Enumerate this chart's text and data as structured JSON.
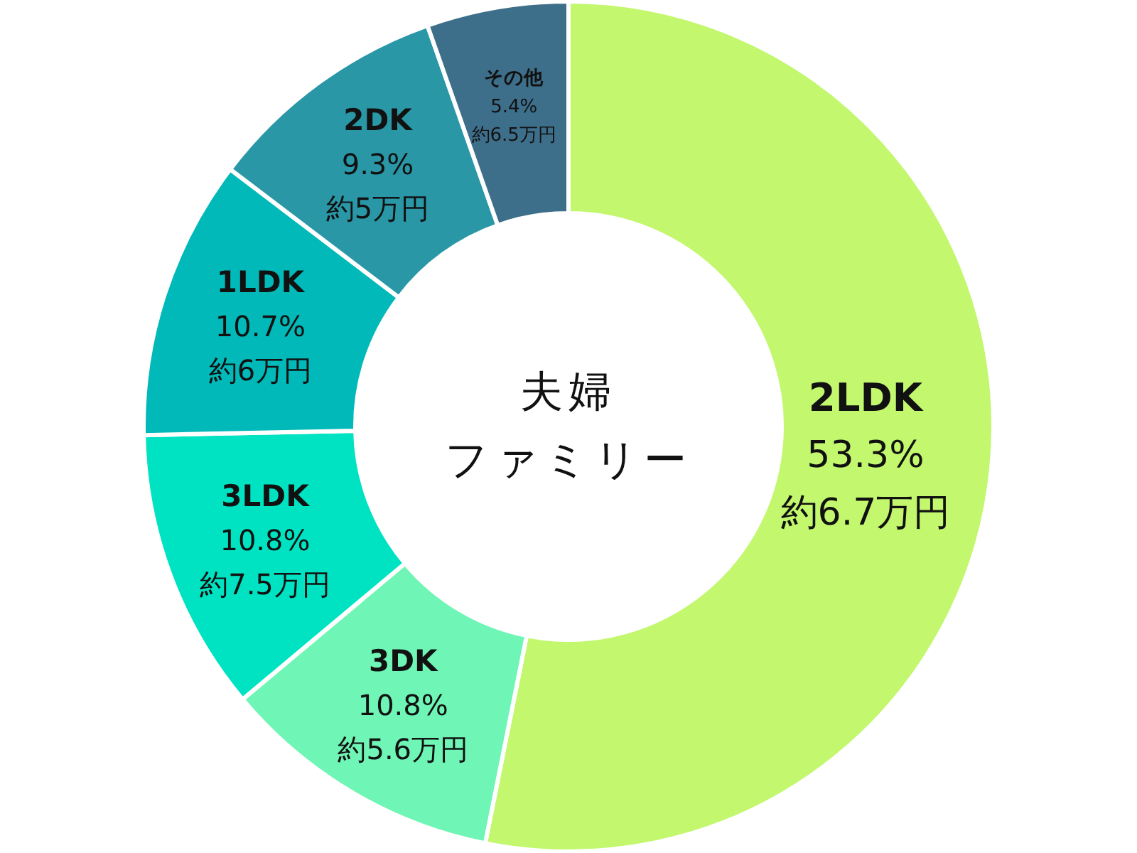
{
  "chart_data": {
    "type": "donut",
    "title": "夫婦",
    "subtitle": "ファミリー",
    "categories": [
      "2LDK",
      "3DK",
      "3LDK",
      "1LDK",
      "2DK",
      "その他"
    ],
    "values": [
      53.3,
      10.8,
      10.8,
      10.7,
      9.3,
      5.4
    ],
    "value_labels": [
      "53.3%",
      "10.8%",
      "10.8%",
      "10.7%",
      "9.3%",
      "5.4%"
    ],
    "colors": [
      "#c2f76e",
      "#6ff5b5",
      "#00e3c2",
      "#00b9b8",
      "#2a97a7",
      "#3e6f8a"
    ],
    "annotations": [
      "約6.7万円",
      "約5.6万円",
      "約7.5万円",
      "約6万円",
      "約5万円",
      "約6.5万円"
    ]
  }
}
